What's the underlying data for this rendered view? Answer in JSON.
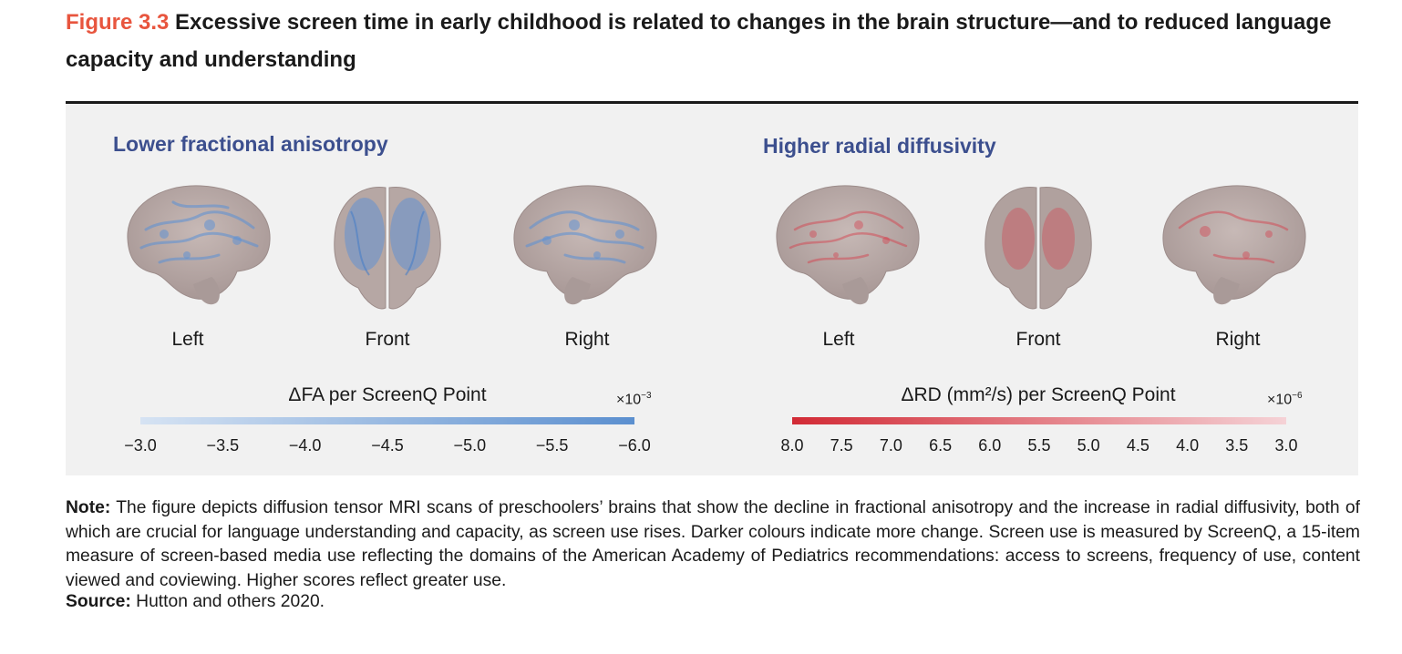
{
  "figure": {
    "number": "Figure 3.3",
    "title": "Excessive screen time in early childhood is related to changes in the brain structure—and to reduced language capacity and understanding"
  },
  "left_panel": {
    "title": "Lower fractional anisotropy",
    "views": [
      "Left",
      "Front",
      "Right"
    ],
    "scale_label": "ΔFA per ScreenQ Point",
    "exponent_base": "×10",
    "exponent_power": "−3",
    "ticks": [
      "−3.0",
      "−3.5",
      "−4.0",
      "−4.5",
      "−5.0",
      "−5.5",
      "−6.0"
    ],
    "bar_color_start": "#d6e3f3",
    "bar_color_end": "#5b8fcf",
    "overlay_color": "#5a8fd6"
  },
  "right_panel": {
    "title": "Higher radial diffusivity",
    "views": [
      "Left",
      "Front",
      "Right"
    ],
    "scale_label": "ΔRD (mm²/s) per ScreenQ Point",
    "exponent_base": "×10",
    "exponent_power": "−6",
    "ticks": [
      "8.0",
      "7.5",
      "7.0",
      "6.5",
      "6.0",
      "5.5",
      "5.0",
      "4.5",
      "4.0",
      "3.5",
      "3.0"
    ],
    "bar_color_start": "#d22a35",
    "bar_color_end": "#f5d2d6",
    "overlay_color": "#d83a48"
  },
  "note": {
    "label": "Note:",
    "text": " The figure depicts diffusion tensor MRI scans of preschoolers’ brains that show the decline in fractional anisotropy and the increase in radial diffusivity, both of which are crucial for language understanding and capacity, as screen use rises. Darker colours indicate more change. Screen use is measured by ScreenQ, a 15-item measure of screen-based media use reflecting the domains of the American Academy of Pediatrics recommendations: access to screens, frequency of use, content viewed and coviewing. Higher scores reflect greater use."
  },
  "source": {
    "label": "Source:",
    "text": " Hutton and others 2020."
  },
  "colors": {
    "figure_number": "#e8553e",
    "section_title": "#3c4f8e",
    "panel_background": "#f1f1f1",
    "brain_tissue": "#b9aaa7"
  }
}
